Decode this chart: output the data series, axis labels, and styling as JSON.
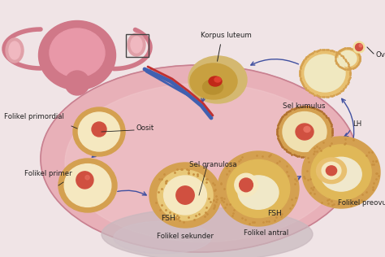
{
  "bg_color": "#f0e4e6",
  "ovary_main_color": "#e8b0b8",
  "ovary_outline_color": "#c88090",
  "ovary_inner_color": "#f0c8cc",
  "bottom_bulge_color": "#c8b8c0",
  "follicle_outer": "#d4a050",
  "follicle_outer2": "#e8c070",
  "follicle_inner": "#f5e8c0",
  "follicle_core": "#d05040",
  "follicle_core_hi": "#e87060",
  "corpus_outer": "#d4b870",
  "corpus_inner": "#c8a040",
  "corpus_dark": "#a06820",
  "corpus_red": "#c02818",
  "arrow_color": "#4050a0",
  "text_color": "#222222",
  "line_color": "#333333",
  "uterus_outer": "#d07888",
  "uterus_inner": "#e898a8",
  "vessel_blue": "#4060b0",
  "vessel_red": "#c03030",
  "labels": {
    "korpus_luteum": "Korpus luteum",
    "ovulasi": "Ovulasi",
    "lh": "LH",
    "sel_kumulus": "Sel kumulus",
    "folikel_primordial": "Folikel primordial",
    "oosit": "Oosit",
    "sel_granulosa": "Sel granulosa",
    "folikel_primer": "Folikel primer",
    "fsh1": "FSH",
    "fsh2": "FSH",
    "folikel_sekunder": "Folikel sekunder",
    "folikel_antral": "Folikel antral",
    "folikel_preovulasi": "Folikel preovulasi"
  },
  "fig_width": 4.74,
  "fig_height": 3.16,
  "dpi": 100
}
